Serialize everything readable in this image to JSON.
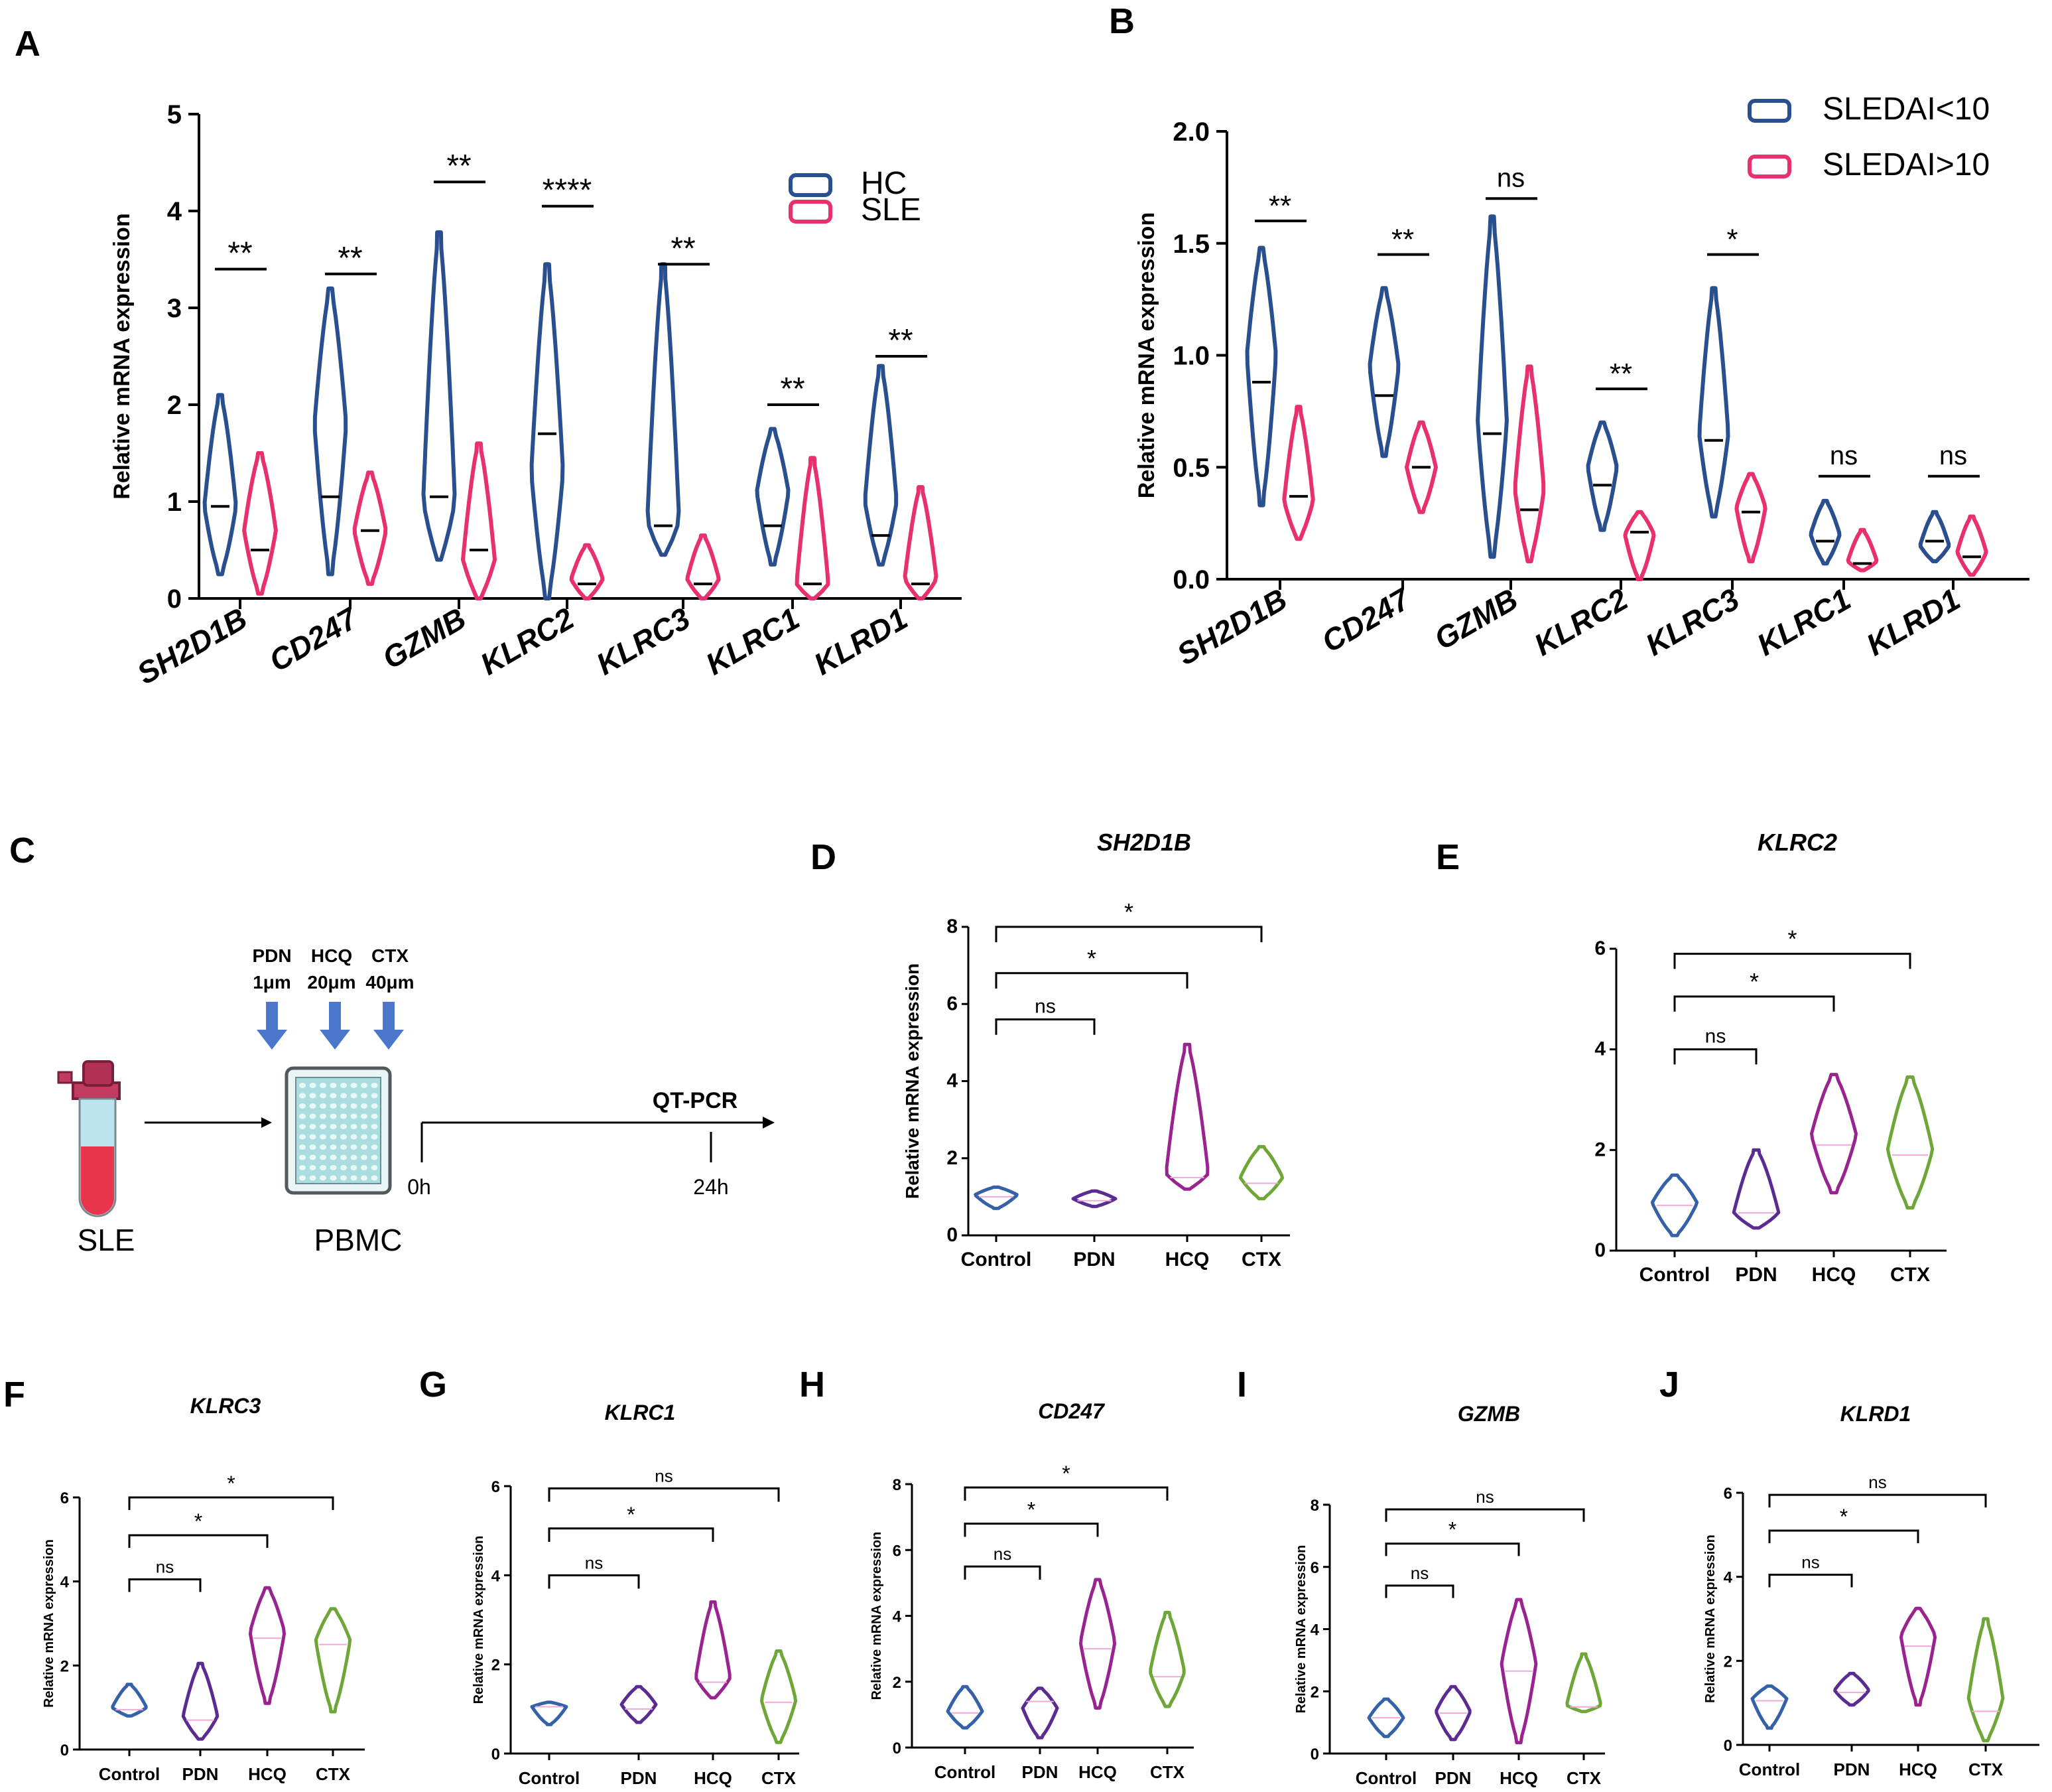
{
  "colors": {
    "hc": "#2a4f8f",
    "sle": "#e8306e",
    "control": "#3461a8",
    "pdn": "#5a2c91",
    "hcq": "#992490",
    "ctx": "#6ea637",
    "axis": "#000000",
    "arrow": "#4a77c9"
  },
  "chart_data": [
    {
      "panel": "A",
      "type": "violin",
      "title": "",
      "ylabel": "Relative mRNA expression",
      "ylim": [
        0,
        5
      ],
      "yticks": [
        "0",
        "1",
        "2",
        "3",
        "4",
        "5"
      ],
      "categories": [
        "SH2D1B",
        "CD247",
        "GZMB",
        "KLRC2",
        "KLRC3",
        "KLRC1",
        "KLRD1"
      ],
      "legend": [
        "HC",
        "SLE"
      ],
      "series": [
        {
          "name": "HC",
          "min": [
            0.25,
            0.25,
            0.4,
            0.0,
            0.45,
            0.35,
            0.35
          ],
          "max": [
            2.1,
            3.2,
            3.78,
            3.45,
            3.45,
            1.75,
            2.4
          ],
          "median": [
            0.95,
            1.05,
            1.05,
            1.7,
            0.75,
            0.75,
            0.65
          ],
          "mode": [
            0.95,
            1.8,
            1.0,
            1.3,
            0.8,
            1.1,
            1.0
          ]
        },
        {
          "name": "SLE",
          "min": [
            0.05,
            0.15,
            0.0,
            0.0,
            0.0,
            0.0,
            0.0
          ],
          "max": [
            1.5,
            1.3,
            1.6,
            0.55,
            0.65,
            1.45,
            1.15
          ],
          "median": [
            0.5,
            0.7,
            0.5,
            0.15,
            0.15,
            0.15,
            0.15
          ],
          "mode": [
            0.7,
            0.7,
            0.4,
            0.2,
            0.2,
            0.15,
            0.2
          ]
        }
      ],
      "significance": [
        "**",
        "**",
        "**",
        "****",
        "**",
        "**",
        "**"
      ],
      "sig_y": [
        3.4,
        3.35,
        4.3,
        4.05,
        3.45,
        2.0,
        2.5
      ]
    },
    {
      "panel": "B",
      "type": "violin",
      "title": "",
      "ylabel": "Relative mRNA expression",
      "ylim": [
        0,
        2
      ],
      "yticks": [
        "0.0",
        "0.5",
        "1.0",
        "1.5",
        "2.0"
      ],
      "categories": [
        "SH2D1B",
        "CD247",
        "GZMB",
        "KLRC2",
        "KLRC3",
        "KLRC1",
        "KLRD1"
      ],
      "legend": [
        "SLEDAI<10",
        "SLEDAI>10"
      ],
      "series": [
        {
          "name": "SLEDAI<10",
          "min": [
            0.33,
            0.55,
            0.1,
            0.22,
            0.28,
            0.07,
            0.08
          ],
          "max": [
            1.48,
            1.3,
            1.62,
            0.7,
            1.3,
            0.35,
            0.3
          ],
          "median": [
            0.88,
            0.82,
            0.65,
            0.42,
            0.62,
            0.17,
            0.17
          ],
          "mode": [
            1.0,
            0.95,
            0.7,
            0.5,
            0.65,
            0.2,
            0.15
          ]
        },
        {
          "name": "SLEDAI>10",
          "min": [
            0.18,
            0.3,
            0.08,
            0.0,
            0.08,
            0.04,
            0.02
          ],
          "max": [
            0.77,
            0.7,
            0.95,
            0.3,
            0.47,
            0.22,
            0.28
          ],
          "median": [
            0.37,
            0.5,
            0.31,
            0.21,
            0.3,
            0.07,
            0.1
          ],
          "mode": [
            0.35,
            0.5,
            0.4,
            0.2,
            0.32,
            0.08,
            0.12
          ]
        }
      ],
      "significance": [
        "**",
        "**",
        "ns",
        "**",
        "*",
        "ns",
        "ns"
      ],
      "sig_y": [
        1.6,
        1.45,
        1.7,
        0.85,
        1.45,
        0.46,
        0.46
      ]
    },
    {
      "panel": "D",
      "type": "violin",
      "title": "SH2D1B",
      "ylabel": "Relative mRNA expression",
      "ylim": [
        0,
        8
      ],
      "yticks": [
        "0",
        "2",
        "4",
        "6",
        "8"
      ],
      "categories": [
        "Control",
        "PDN",
        "HCQ",
        "CTX"
      ],
      "min": [
        0.7,
        0.75,
        1.2,
        0.95
      ],
      "max": [
        1.25,
        1.15,
        4.95,
        2.3
      ],
      "median": [
        1.0,
        0.9,
        1.5,
        1.35
      ],
      "mode": [
        1.05,
        0.95,
        1.6,
        1.5
      ],
      "brackets": [
        {
          "to": "PDN",
          "label": "ns",
          "y": 5.6
        },
        {
          "to": "HCQ",
          "label": "*",
          "y": 6.8
        },
        {
          "to": "CTX",
          "label": "*",
          "y": 8.0
        }
      ]
    },
    {
      "panel": "E",
      "type": "violin",
      "title": "KLRC2",
      "ylabel": "",
      "ylim": [
        0,
        6
      ],
      "yticks": [
        "0",
        "2",
        "4",
        "6"
      ],
      "categories": [
        "Control",
        "PDN",
        "HCQ",
        "CTX"
      ],
      "min": [
        0.3,
        0.45,
        1.15,
        0.85
      ],
      "max": [
        1.5,
        2.0,
        3.5,
        3.45
      ],
      "median": [
        0.9,
        0.75,
        2.1,
        1.9
      ],
      "mode": [
        0.95,
        0.75,
        2.3,
        2.0
      ],
      "brackets": [
        {
          "to": "PDN",
          "label": "ns",
          "y": 4.0
        },
        {
          "to": "HCQ",
          "label": "*",
          "y": 5.05
        },
        {
          "to": "CTX",
          "label": "*",
          "y": 5.9
        }
      ]
    },
    {
      "panel": "F",
      "type": "violin",
      "title": "KLRC3",
      "ylabel": "Relative mRNA expression",
      "ylim": [
        0,
        6
      ],
      "yticks": [
        "0",
        "2",
        "4",
        "6"
      ],
      "categories": [
        "Control",
        "PDN",
        "HCQ",
        "CTX"
      ],
      "min": [
        0.8,
        0.25,
        1.1,
        0.9
      ],
      "max": [
        1.55,
        2.05,
        3.85,
        3.35
      ],
      "median": [
        0.95,
        0.7,
        2.65,
        2.5
      ],
      "mode": [
        1.0,
        0.8,
        2.8,
        2.6
      ],
      "brackets": [
        {
          "to": "PDN",
          "label": "ns",
          "y": 4.05
        },
        {
          "to": "HCQ",
          "label": "*",
          "y": 5.1
        },
        {
          "to": "CTX",
          "label": "*",
          "y": 6.0
        }
      ]
    },
    {
      "panel": "G",
      "type": "violin",
      "title": "KLRC1",
      "ylabel": "Relative mRNA expression",
      "ylim": [
        0,
        6
      ],
      "yticks": [
        "0",
        "2",
        "4",
        "6"
      ],
      "categories": [
        "Control",
        "PDN",
        "HCQ",
        "CTX"
      ],
      "min": [
        0.65,
        0.7,
        1.25,
        0.25
      ],
      "max": [
        1.15,
        1.5,
        3.4,
        2.3
      ],
      "median": [
        1.05,
        1.0,
        1.6,
        1.15
      ],
      "mode": [
        1.05,
        1.1,
        1.7,
        1.2
      ],
      "brackets": [
        {
          "to": "PDN",
          "label": "ns",
          "y": 4.0
        },
        {
          "to": "HCQ",
          "label": "*",
          "y": 5.05
        },
        {
          "to": "CTX",
          "label": "ns",
          "y": 5.95
        }
      ]
    },
    {
      "panel": "H",
      "type": "violin",
      "title": "CD247",
      "ylabel": "Relative mRNA expression",
      "ylim": [
        0,
        8
      ],
      "yticks": [
        "0",
        "2",
        "4",
        "6",
        "8"
      ],
      "categories": [
        "Control",
        "PDN",
        "HCQ",
        "CTX"
      ],
      "min": [
        0.6,
        0.3,
        1.2,
        1.25
      ],
      "max": [
        1.85,
        1.8,
        5.1,
        4.1
      ],
      "median": [
        1.05,
        1.4,
        3.0,
        2.15
      ],
      "mode": [
        1.1,
        1.2,
        3.2,
        2.3
      ],
      "brackets": [
        {
          "to": "PDN",
          "label": "ns",
          "y": 5.5
        },
        {
          "to": "HCQ",
          "label": "*",
          "y": 6.8
        },
        {
          "to": "CTX",
          "label": "*",
          "y": 7.9
        }
      ]
    },
    {
      "panel": "I",
      "type": "violin",
      "title": "GZMB",
      "ylabel": "Relative mRNA expression",
      "ylim": [
        0,
        8
      ],
      "yticks": [
        "0",
        "2",
        "4",
        "6",
        "8"
      ],
      "categories": [
        "Control",
        "PDN",
        "HCQ",
        "CTX"
      ],
      "min": [
        0.55,
        0.45,
        0.35,
        1.35
      ],
      "max": [
        1.75,
        2.15,
        4.95,
        3.2
      ],
      "median": [
        1.15,
        1.3,
        2.65,
        1.5
      ],
      "mode": [
        1.15,
        1.35,
        2.9,
        1.55
      ],
      "brackets": [
        {
          "to": "PDN",
          "label": "ns",
          "y": 5.4
        },
        {
          "to": "HCQ",
          "label": "*",
          "y": 6.75
        },
        {
          "to": "CTX",
          "label": "ns",
          "y": 7.85
        }
      ]
    },
    {
      "panel": "J",
      "type": "violin",
      "title": "KLRD1",
      "ylabel": "Relative mRNA expression",
      "ylim": [
        0,
        6
      ],
      "yticks": [
        "0",
        "2",
        "4",
        "6"
      ],
      "categories": [
        "Control",
        "PDN",
        "HCQ",
        "CTX"
      ],
      "min": [
        0.4,
        0.95,
        0.95,
        0.1
      ],
      "max": [
        1.4,
        1.7,
        3.25,
        3.0
      ],
      "median": [
        1.05,
        1.25,
        2.35,
        0.8
      ],
      "mode": [
        1.1,
        1.3,
        2.6,
        1.1
      ],
      "brackets": [
        {
          "to": "PDN",
          "label": "ns",
          "y": 4.05
        },
        {
          "to": "HCQ",
          "label": "*",
          "y": 5.1
        },
        {
          "to": "CTX",
          "label": "ns",
          "y": 5.95
        }
      ]
    }
  ],
  "schematic": {
    "panel": "C",
    "drugs": [
      {
        "name": "PDN",
        "conc": "1μm"
      },
      {
        "name": "HCQ",
        "conc": "20μm"
      },
      {
        "name": "CTX",
        "conc": "40μm"
      }
    ],
    "source_label": "SLE",
    "cells_label": "PBMC",
    "assay_label": "QT-PCR",
    "t0_label": "0h",
    "t1_label": "24h"
  },
  "panel_letters": {
    "A": "A",
    "B": "B",
    "C": "C",
    "D": "D",
    "E": "E",
    "F": "F",
    "G": "G",
    "H": "H",
    "I": "I",
    "J": "J"
  }
}
